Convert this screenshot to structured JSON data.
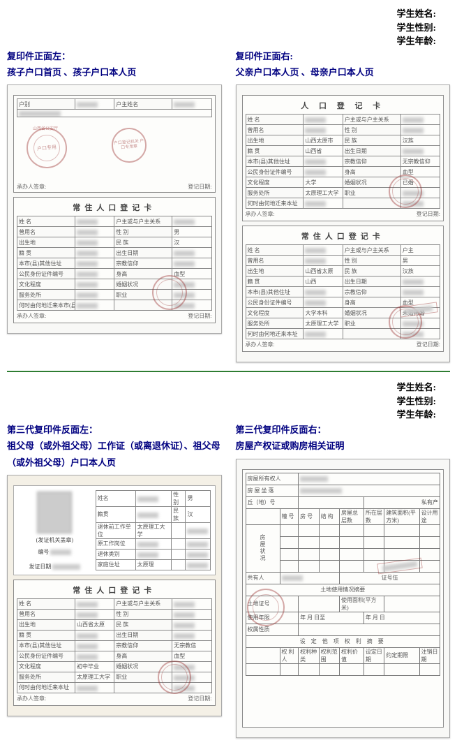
{
  "header": {
    "name_label": "学生姓名:",
    "gender_label": "学生性别:",
    "age_label": "学生年龄:"
  },
  "top_left": {
    "title_line1": "复印件正面左：",
    "title_line2": "孩子户口首页 、孩子户口本人页",
    "page1": {
      "stamp_outer": "山西省公安厅",
      "stamp_inner": "户口专用",
      "small_stamp": "户口登记机关\n户口专用章",
      "top_label1": "户别",
      "top_label2": "户主姓名",
      "foot": "承办人签章:",
      "foot2": "登记日期:"
    },
    "page2": {
      "title": "常住人口登记卡",
      "rows": [
        [
          "姓 名",
          "",
          "户主或与户主关系",
          ""
        ],
        [
          "曾用名",
          "",
          "性 别",
          "男"
        ],
        [
          "出生地",
          "",
          "民 族",
          "汉"
        ],
        [
          "籍 贯",
          "",
          "出生日期",
          ""
        ],
        [
          "本市(县)其他住址",
          "",
          "宗教信仰",
          ""
        ],
        [
          "公民身份证件编号",
          "",
          "身高",
          "血型"
        ],
        [
          "文化程度",
          "",
          "婚姻状况",
          ""
        ],
        [
          "服务处所",
          "",
          "职业",
          ""
        ],
        [
          "何时由何地迁来本市(县)",
          "",
          "",
          ""
        ]
      ],
      "foot": "承办人签章:",
      "foot2": "登记日期:"
    }
  },
  "top_right": {
    "title_line1": "复印件正面右:",
    "title_line2": "父亲户口本人页 、母亲户口本人页",
    "page1": {
      "title": "人 口 登 记 卡",
      "rows": [
        [
          "姓 名",
          "",
          "户主或与户主关系",
          ""
        ],
        [
          "曾用名",
          "",
          "性 别",
          ""
        ],
        [
          "出生地",
          "山西太原市",
          "民 族",
          "汉族"
        ],
        [
          "籍 贯",
          "山西省",
          "出生日期",
          ""
        ],
        [
          "本市(县)其他住址",
          "",
          "宗教信仰",
          "无宗教信仰"
        ],
        [
          "公民身份证件编号",
          "",
          "身高",
          "血型"
        ],
        [
          "文化程度",
          "大学",
          "婚姻状况",
          "已婚"
        ],
        [
          "服务处所",
          "太原理工大学",
          "职业",
          ""
        ],
        [
          "何时由何地迁来本址",
          "",
          "",
          ""
        ]
      ],
      "foot": "承办人签章:",
      "foot2": "登记日期:"
    },
    "page2": {
      "title": "常住人口登记卡",
      "rows": [
        [
          "姓 名",
          "",
          "户主或与户主关系",
          "户主"
        ],
        [
          "曾用名",
          "",
          "性 别",
          "男"
        ],
        [
          "出生地",
          "山西省太原",
          "民 族",
          "汉族"
        ],
        [
          "籍 贯",
          "山西",
          "出生日期",
          ""
        ],
        [
          "本市(县)其他住址",
          "",
          "宗教信仰",
          ""
        ],
        [
          "公民身份证件编号",
          "",
          "身高",
          "血型"
        ],
        [
          "文化程度",
          "大学本科",
          "婚姻状况",
          "未婚再婚"
        ],
        [
          "服务处所",
          "太原理工大学",
          "职业",
          ""
        ],
        [
          "何时由何地迁来本址",
          "",
          "",
          ""
        ]
      ],
      "foot": "承办人签章:",
      "foot2": "登记日期:"
    }
  },
  "bottom_left": {
    "title_line1": "第三代复印件反面左：",
    "title_line2": "祖父母（或外祖父母）工作证（或离退休证）、祖父母（或外祖父母）户口本人页",
    "id": {
      "issuer": "(发证机关盖章)",
      "no_label": "编号",
      "date_label": "发证日期",
      "rows": [
        [
          "姓名",
          "",
          "性别",
          "男"
        ],
        [
          "籍贯",
          "",
          "民族",
          "汉"
        ],
        [
          "退休前工作单位",
          "太原理工大学",
          "",
          ""
        ],
        [
          "原工作岗位",
          "",
          "",
          ""
        ],
        [
          "退休类别",
          "",
          "",
          ""
        ],
        [
          "家庭住址",
          "太原理",
          "",
          ""
        ]
      ]
    },
    "page2": {
      "title": "常住人口登记卡",
      "rows": [
        [
          "姓 名",
          "",
          "户主或与户主关系",
          ""
        ],
        [
          "曾用名",
          "",
          "性 别",
          ""
        ],
        [
          "出生地",
          "山西省太原",
          "民 族",
          ""
        ],
        [
          "籍 贯",
          "",
          "出生日期",
          ""
        ],
        [
          "本市(县)其他住址",
          "",
          "宗教信仰",
          "无宗教信"
        ],
        [
          "公民身份证件编号",
          "",
          "身高",
          "血型"
        ],
        [
          "文化程度",
          "初中毕业",
          "婚姻状况",
          ""
        ],
        [
          "服务处所",
          "太原理工大学",
          "职业",
          ""
        ],
        [
          "何时由何地迁来本址",
          "",
          "",
          ""
        ]
      ],
      "foot": "承办人签章:",
      "foot2": "登记日期:"
    }
  },
  "bottom_right": {
    "title_line1": "第三代复印件反面右：",
    "title_line2": "房屋产权证或购房相关证明",
    "prop": {
      "owner_label": "房屋所有权人",
      "location_label": "房 屋 坐 落",
      "qiu_label": "丘（地）号",
      "priv_label": "私有产",
      "cols": [
        "幢 号",
        "房 号",
        "结 构",
        "房屋总层数",
        "所在层数",
        "建筑面积(平方米)",
        "设计用途"
      ],
      "status_label": "房屋状况",
      "share_label": "共有人",
      "share_cert": "证号伍",
      "land_title": "土地使用情况摘要",
      "land_no": "土地证号",
      "land_area": "使用面积(平方米)",
      "land_years": "使用年限",
      "from": "年  月  日至",
      "to": "年  月  日",
      "right_type": "权属性质",
      "other_title": "设 定 他 项 权 利 摘 要",
      "other_cols": [
        "权 利 人",
        "权利种类",
        "权利范围",
        "权利价值",
        "设定日期",
        "约定期限",
        "注销日期"
      ]
    }
  }
}
